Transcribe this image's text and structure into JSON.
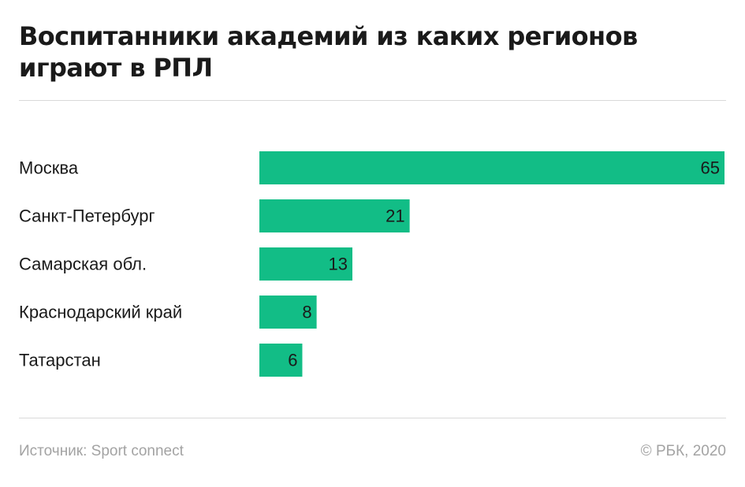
{
  "header": {
    "title_line1": "Воспитанники академий из каких регионов",
    "title_line2": "играют в РПЛ"
  },
  "chart_data": {
    "type": "bar",
    "orientation": "horizontal",
    "categories": [
      "Москва",
      "Санкт-Петербург",
      "Самарская обл.",
      "Краснодарский край",
      "Татарстан"
    ],
    "values": [
      65,
      21,
      13,
      8,
      6
    ],
    "xlim": [
      0,
      65
    ],
    "grid": false,
    "bar_color": "#12bd86"
  },
  "footer": {
    "source": "Источник: Sport connect",
    "copyright": "© РБК, 2020"
  }
}
